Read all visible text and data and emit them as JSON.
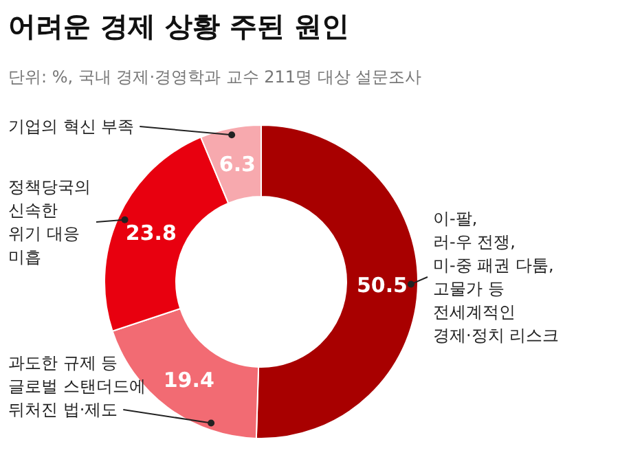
{
  "chart_data": {
    "type": "donut",
    "title": "어려운 경제 상황 주된 원인",
    "subtitle": "단위: %, 국내 경제·경영학과 교수 211명 대상 설문조사",
    "categories": [
      "이-팔,\n러-우 전쟁,\n미-중 패권 다툼,\n고물가 등\n전세계적인\n경제·정치 리스크",
      "과도한 규제 등\n글로벌 스탠더드에\n뒤처진 법·제도",
      "정책당국의\n신속한\n위기 대응\n미흡",
      "기업의 혁신 부족"
    ],
    "values": [
      50.5,
      19.4,
      23.8,
      6.3
    ],
    "colors": [
      "#a80000",
      "#f26b73",
      "#e8000f",
      "#f7a9ae"
    ],
    "data_labels": true
  }
}
